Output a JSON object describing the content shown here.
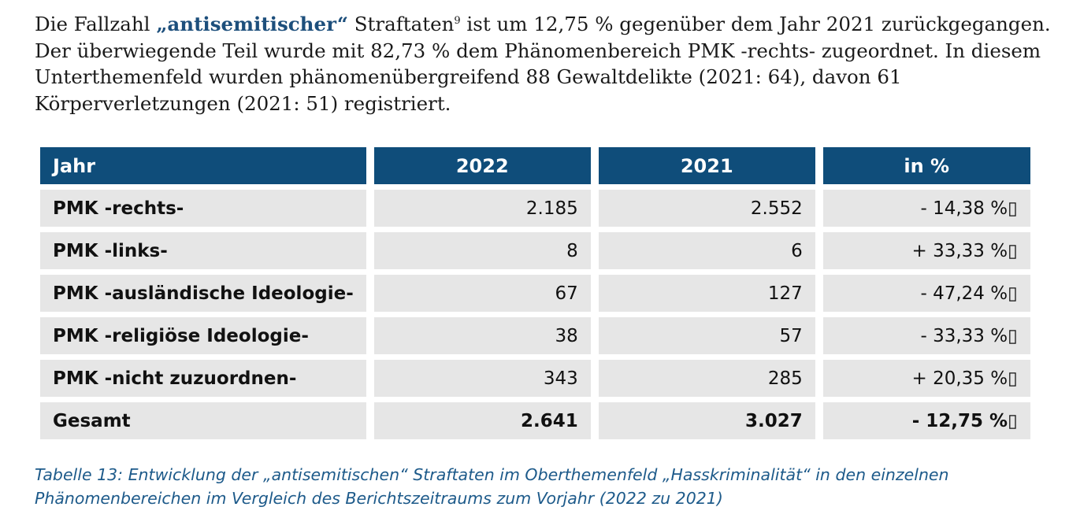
{
  "paragraph": {
    "part1": "Die Fallzahl ",
    "highlight": "„antisemitischer“",
    "part2": " Straftaten",
    "footnote": "9",
    "part3": " ist um 12,75 % gegenüber dem Jahr 2021 zurückgegangen. Der überwiegende Teil wurde mit 82,73 % dem Phänomenbereich PMK -rechts- zugeordnet. In diesem Unterthemenfeld wurden phänomenübergreifend 88 Gewaltdelikte (2021: 64), davon 61 Körperverletzungen (2021: 51) registriert."
  },
  "table": {
    "headers": [
      "Jahr",
      "2022",
      "2021",
      "in %"
    ],
    "rows": [
      [
        "PMK -rechts-",
        "2.185",
        "2.552",
        "- 14,38 %▯"
      ],
      [
        "PMK -links-",
        "8",
        "6",
        "+ 33,33 %▯"
      ],
      [
        "PMK -ausländische Ideologie-",
        "67",
        "127",
        "- 47,24 %▯"
      ],
      [
        "PMK -religiöse Ideologie-",
        "38",
        "57",
        "- 33,33 %▯"
      ],
      [
        "PMK -nicht zuzuordnen-",
        "343",
        "285",
        "+ 20,35 %▯"
      ],
      [
        "Gesamt",
        "2.641",
        "3.027",
        "- 12,75 %▯"
      ]
    ]
  },
  "caption": "Tabelle 13: Entwicklung der „antisemitischen“ Straftaten im Oberthemenfeld „Hasskriminalität“ in den einzelnen Phänomenbereichen im Vergleich des Berichtszeitraums zum Vorjahr (2022 zu 2021)",
  "colors": {
    "header_bg": "#0f4d7a",
    "cell_bg": "#e6e6e6",
    "accent_text": "#1d4f7c",
    "caption_text": "#1d5a8a"
  }
}
